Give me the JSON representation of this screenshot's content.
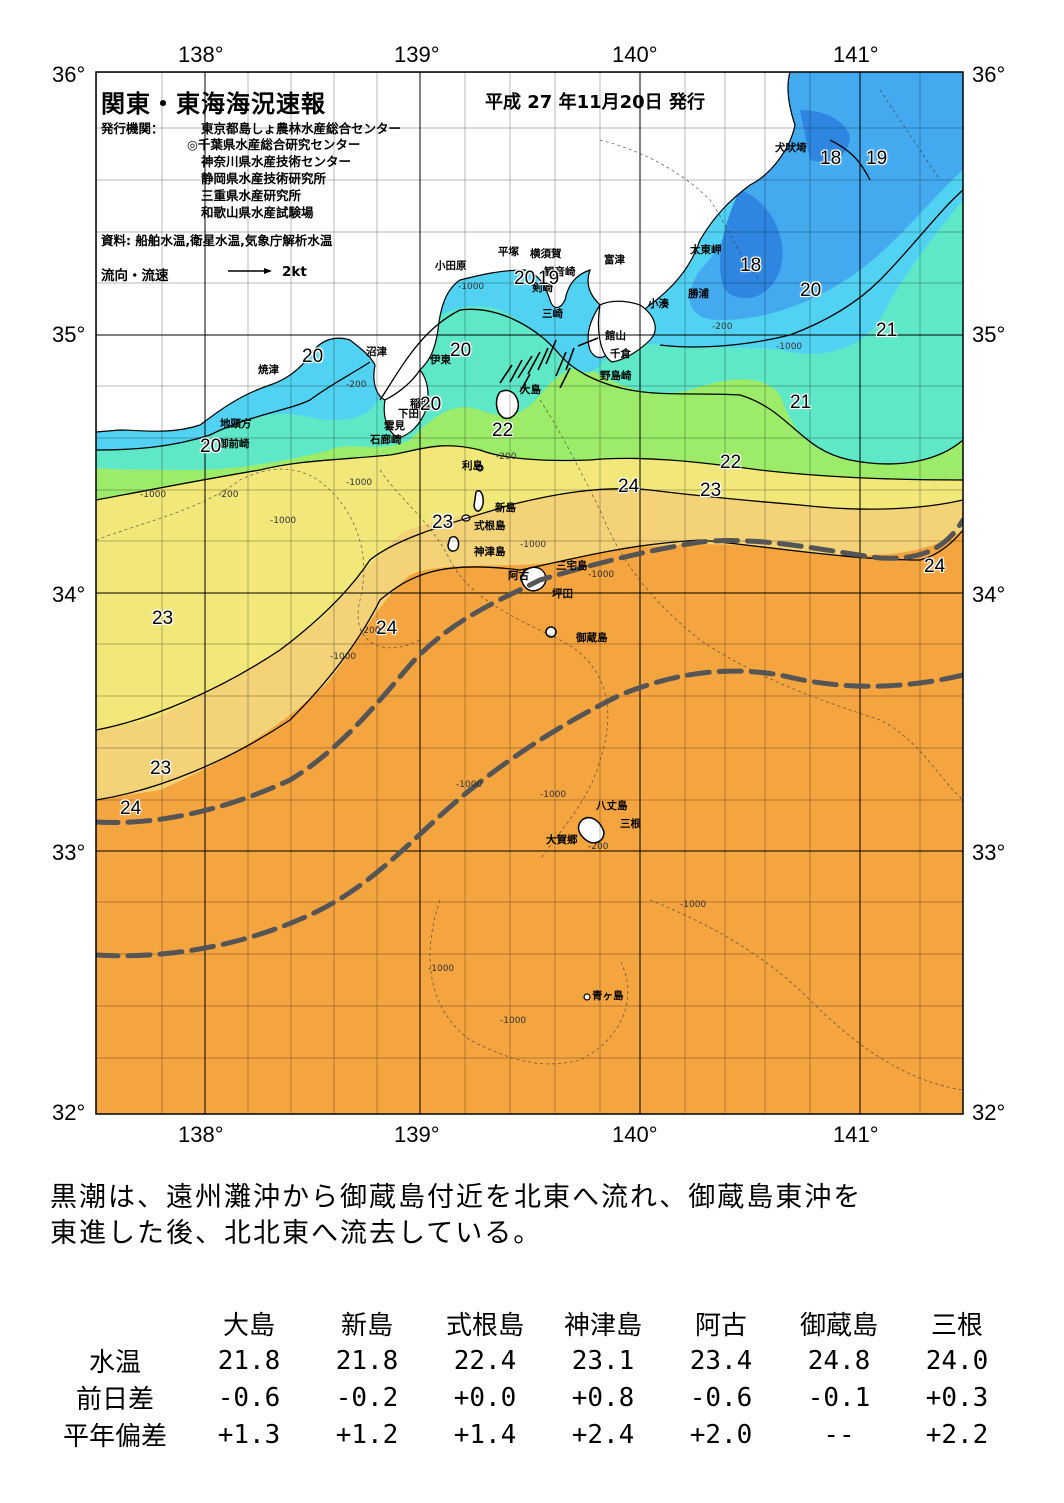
{
  "map": {
    "title": "関東・東海海況速報",
    "issued": "平成 27 年11月20日 発行",
    "publisher_label": "発行機関：",
    "publishers": [
      "東京都島しょ農林水産総合センター",
      "◎千葉県水産総合研究センター",
      "神奈川県水産技術センター",
      "静岡県水産技術研究所",
      "三重県水産研究所",
      "和歌山県水産試験場"
    ],
    "source": "資料: 船舶水温,衛星水温,気象庁解析水温",
    "legend_label": "流向・流速",
    "legend_value": "2kt",
    "lon_labels": [
      "138°",
      "139°",
      "140°",
      "141°"
    ],
    "lat_labels": [
      "36°",
      "35°",
      "34°",
      "33°",
      "32°"
    ],
    "places": [
      "犬吠埼",
      "平塚",
      "横須賀",
      "観音崎",
      "小田原",
      "富津",
      "太東岬",
      "剣崎",
      "小湊",
      "勝浦",
      "三崎",
      "館山",
      "沼津",
      "千倉",
      "伊東",
      "野島崎",
      "焼津",
      "大島",
      "稲取",
      "下田",
      "雲見",
      "石廊崎",
      "地頭方",
      "御前崎",
      "利島",
      "新島",
      "式根島",
      "神津島",
      "三宅島",
      "阿古",
      "坪田",
      "御蔵島",
      "八丈島",
      "三根",
      "大賀郷",
      "青ヶ島"
    ],
    "isotherms": [
      "18",
      "19",
      "18",
      "20",
      "20",
      "19",
      "20",
      "21",
      "20",
      "20",
      "21",
      "20",
      "22",
      "22",
      "24",
      "23",
      "23",
      "24",
      "23",
      "24",
      "23",
      "24"
    ],
    "depth_labels": [
      "-1000",
      "-200",
      "-1000",
      "-200",
      "-1000",
      "-200",
      "-1000",
      "-200",
      "-1000",
      "-200",
      "-1000",
      "-1000",
      "-1000",
      "-1000",
      "-200",
      "-1000",
      "-1000",
      "-1000",
      "-1000"
    ]
  },
  "summary": [
    "黒潮は、遠州灘沖から御蔵島付近を北東へ流れ、御蔵島東沖を",
    "東進した後、北北東へ流去している。"
  ],
  "table": {
    "columns": [
      "大島",
      "新島",
      "式根島",
      "神津島",
      "阿古",
      "御蔵島",
      "三根"
    ],
    "rows": [
      {
        "label": "水温",
        "values": [
          "21.8",
          "21.8",
          "22.4",
          "23.1",
          "23.4",
          "24.8",
          "24.0"
        ]
      },
      {
        "label": "前日差",
        "values": [
          "-0.6",
          "-0.2",
          "+0.0",
          "+0.8",
          "-0.6",
          "-0.1",
          "+0.3"
        ]
      },
      {
        "label": "平年偏差",
        "values": [
          "+1.3",
          "+1.2",
          "+1.4",
          "+2.4",
          "+2.0",
          "--",
          "+2.2"
        ]
      }
    ]
  },
  "colors": {
    "sea_18": "#2e86e0",
    "sea_19": "#44aaf0",
    "sea_20": "#52d2f2",
    "sea_21": "#5ee8c8",
    "sea_22": "#9cec6a",
    "sea_23": "#f2e87a",
    "sea_23_5": "#f4d278",
    "sea_24": "#f5a540",
    "land": "#ffffff",
    "kuroshio_axis": "#555555"
  }
}
